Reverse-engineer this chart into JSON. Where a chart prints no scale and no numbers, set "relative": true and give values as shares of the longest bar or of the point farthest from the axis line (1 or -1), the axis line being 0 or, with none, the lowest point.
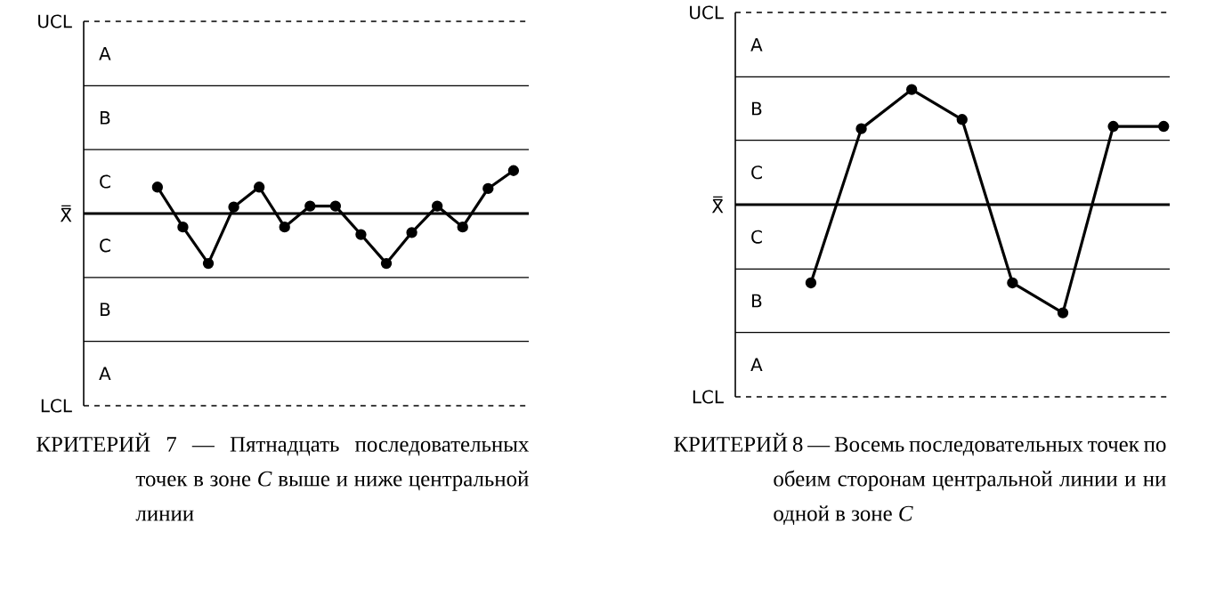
{
  "chart_data": [
    {
      "type": "line",
      "relative": true,
      "categories": [
        null,
        null,
        null,
        null,
        null,
        null,
        null,
        null,
        null,
        null,
        null,
        null,
        null,
        null,
        null
      ],
      "series": [
        {
          "color": "#000000",
          "values": [
            0.53,
            -0.27,
            -1,
            0.13,
            0.53,
            -0.27,
            0.15,
            0.15,
            -0.42,
            -1,
            -0.38,
            0.15,
            -0.27,
            0.5,
            0.86
          ]
        }
      ],
      "marker": "circle",
      "ref_lines": [
        {
          "axis": "y",
          "value": 3.85,
          "label": "UCL",
          "line_style": "dashed"
        },
        {
          "axis": "y",
          "value": 2.56,
          "line_style": "solid"
        },
        {
          "axis": "y",
          "value": 1.28,
          "line_style": "solid"
        },
        {
          "axis": "y",
          "value": 0,
          "label": "X̿",
          "line_style": "solid"
        },
        {
          "axis": "y",
          "value": -1.28,
          "line_style": "solid"
        },
        {
          "axis": "y",
          "value": -2.56,
          "line_style": "solid"
        },
        {
          "axis": "y",
          "value": -3.85,
          "label": "LCL",
          "line_style": "dashed"
        }
      ],
      "annotations": [
        "A",
        "B",
        "C",
        "C",
        "B",
        "A",
        "КРИТЕРИЙ 7 — Пятнадцать последовательных точек в зоне *C* выше и ниже центральной линии"
      ]
    },
    {
      "type": "line",
      "relative": true,
      "categories": [
        null,
        null,
        null,
        null,
        null,
        null,
        null,
        null
      ],
      "series": [
        {
          "color": "#000000",
          "values": [
            -0.68,
            0.66,
            1,
            0.74,
            -0.68,
            -0.94,
            0.68,
            0.68
          ]
        }
      ],
      "marker": "circle",
      "ref_lines": [
        {
          "axis": "y",
          "value": 1.67,
          "label": "UCL",
          "line_style": "dashed"
        },
        {
          "axis": "y",
          "value": 1.11,
          "line_style": "solid"
        },
        {
          "axis": "y",
          "value": 0.56,
          "line_style": "solid"
        },
        {
          "axis": "y",
          "value": 0,
          "label": "X̿",
          "line_style": "solid"
        },
        {
          "axis": "y",
          "value": -0.56,
          "line_style": "solid"
        },
        {
          "axis": "y",
          "value": -1.11,
          "line_style": "solid"
        },
        {
          "axis": "y",
          "value": -1.67,
          "label": "LCL",
          "line_style": "dashed"
        }
      ],
      "annotations": [
        "A",
        "B",
        "C",
        "C",
        "B",
        "A",
        "КРИТЕРИЙ 8 — Восемь последовательных точек по обеим сторонам центральной линии и ни одной в зоне *C*"
      ]
    }
  ]
}
